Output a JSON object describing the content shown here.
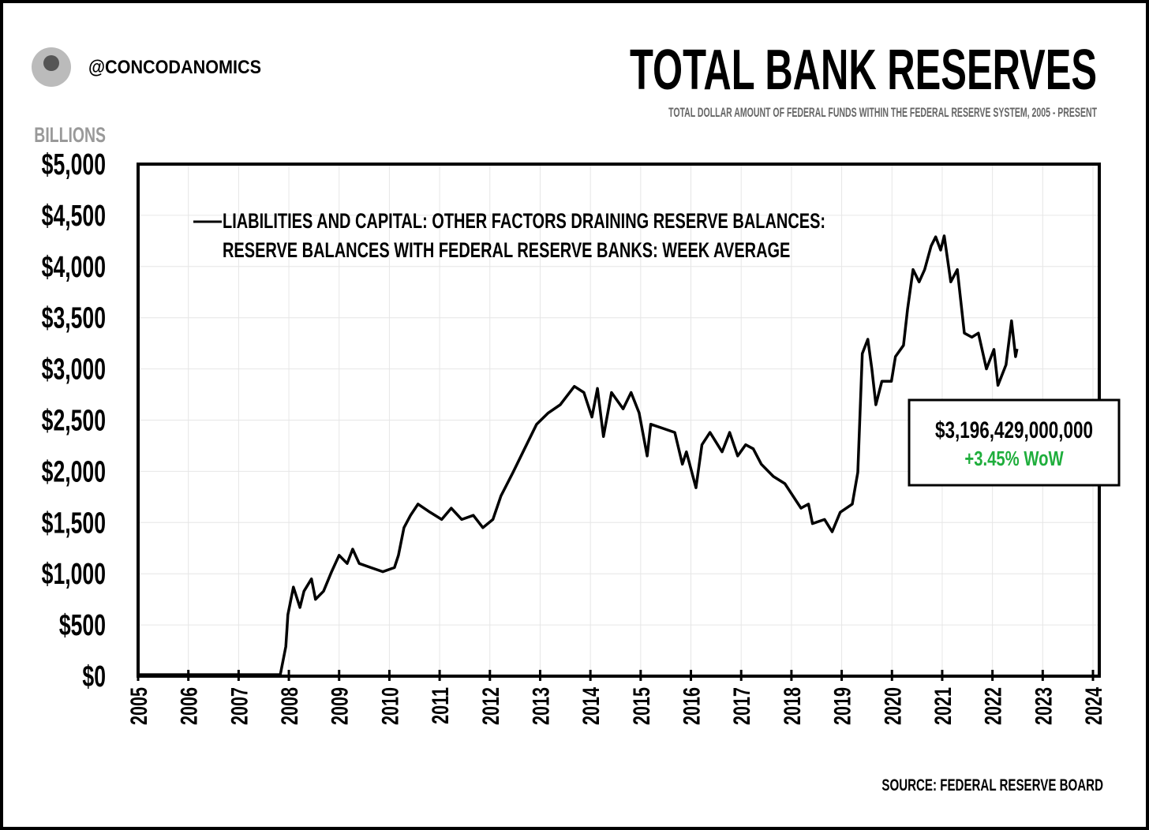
{
  "handle": "@CONCODANOMICS",
  "chart_data": {
    "type": "line",
    "title": "TOTAL BANK RESERVES",
    "subtitle": "TOTAL DOLLAR AMOUNT OF FEDERAL FUNDS WITHIN THE FEDERAL RESERVE SYSTEM, 2005 - PRESENT",
    "y_axis_label": "BILLIONS",
    "source": "SOURCE: FEDERAL RESERVE BOARD",
    "annotation": {
      "value": "$3,196,429,000,000",
      "change": "+3.45% WoW"
    },
    "grid": true,
    "xlim": [
      2005,
      2024
    ],
    "xticks": [
      2005,
      2006,
      2007,
      2008,
      2009,
      2010,
      2011,
      2012,
      2013,
      2014,
      2015,
      2016,
      2017,
      2018,
      2019,
      2020,
      2021,
      2022,
      2023,
      2024
    ],
    "ylim": [
      0,
      5000
    ],
    "yticks": [
      {
        "value": 0,
        "label": "$0"
      },
      {
        "value": 500,
        "label": "$500"
      },
      {
        "value": 1000,
        "label": "$1,000"
      },
      {
        "value": 1500,
        "label": "$1,500"
      },
      {
        "value": 2000,
        "label": "$2,000"
      },
      {
        "value": 2500,
        "label": "$2,500"
      },
      {
        "value": 3000,
        "label": "$3,000"
      },
      {
        "value": 3500,
        "label": "$3,500"
      },
      {
        "value": 4000,
        "label": "$4,000"
      },
      {
        "value": 4500,
        "label": "$4,500"
      },
      {
        "value": 5000,
        "label": "$5,000"
      }
    ],
    "x": [
      2005.0,
      2006.0,
      2007.0,
      2007.83,
      2007.94,
      2007.98,
      2008.09,
      2008.22,
      2008.3,
      2008.45,
      2008.53,
      2008.69,
      2008.85,
      2009.0,
      2009.16,
      2009.27,
      2009.4,
      2009.63,
      2009.87,
      2010.1,
      2010.18,
      2010.29,
      2010.42,
      2010.57,
      2010.81,
      2011.04,
      2011.23,
      2011.44,
      2011.67,
      2011.86,
      2012.06,
      2012.22,
      2012.46,
      2012.69,
      2012.93,
      2013.16,
      2013.4,
      2013.68,
      2013.87,
      2014.03,
      2014.14,
      2014.26,
      2014.42,
      2014.65,
      2014.81,
      2014.97,
      2015.13,
      2015.2,
      2015.44,
      2015.68,
      2015.83,
      2015.91,
      2016.1,
      2016.22,
      2016.38,
      2016.62,
      2016.77,
      2016.93,
      2017.09,
      2017.24,
      2017.4,
      2017.64,
      2017.87,
      2018.03,
      2018.19,
      2018.34,
      2018.42,
      2018.66,
      2018.81,
      2018.97,
      2019.21,
      2019.32,
      2019.41,
      2019.52,
      2019.6,
      2019.68,
      2019.8,
      2019.99,
      2020.07,
      2020.23,
      2020.31,
      2020.42,
      2020.54,
      2020.65,
      2020.78,
      2020.87,
      2020.97,
      2021.04,
      2021.17,
      2021.3,
      2021.44,
      2021.59,
      2021.72,
      2021.88,
      2022.03,
      2022.11,
      2022.27,
      2022.38,
      2022.46,
      2022.49
    ],
    "series": [
      {
        "name": "LIABILITIES AND CAPITAL: OTHER FACTORS DRAINING RESERVE BALANCES: RESERVE BALANCES WITH FEDERAL RESERVE BANKS: WEEK AVERAGE",
        "color": "#000000",
        "values": [
          15,
          15,
          15,
          15,
          290,
          600,
          870,
          670,
          830,
          950,
          750,
          830,
          1020,
          1180,
          1100,
          1240,
          1100,
          1060,
          1020,
          1060,
          1180,
          1450,
          1570,
          1680,
          1600,
          1530,
          1640,
          1530,
          1570,
          1450,
          1530,
          1760,
          1990,
          2220,
          2460,
          2570,
          2650,
          2830,
          2770,
          2530,
          2810,
          2340,
          2770,
          2610,
          2770,
          2570,
          2150,
          2460,
          2420,
          2380,
          2070,
          2190,
          1840,
          2260,
          2380,
          2190,
          2380,
          2150,
          2260,
          2220,
          2070,
          1950,
          1880,
          1760,
          1640,
          1680,
          1490,
          1530,
          1410,
          1600,
          1680,
          1990,
          3150,
          3290,
          3000,
          2650,
          2880,
          2880,
          3120,
          3230,
          3580,
          3970,
          3850,
          3970,
          4200,
          4290,
          4160,
          4300,
          3850,
          3970,
          3350,
          3310,
          3350,
          3000,
          3190,
          2840,
          3040,
          3470,
          3120,
          3196
        ]
      }
    ]
  }
}
